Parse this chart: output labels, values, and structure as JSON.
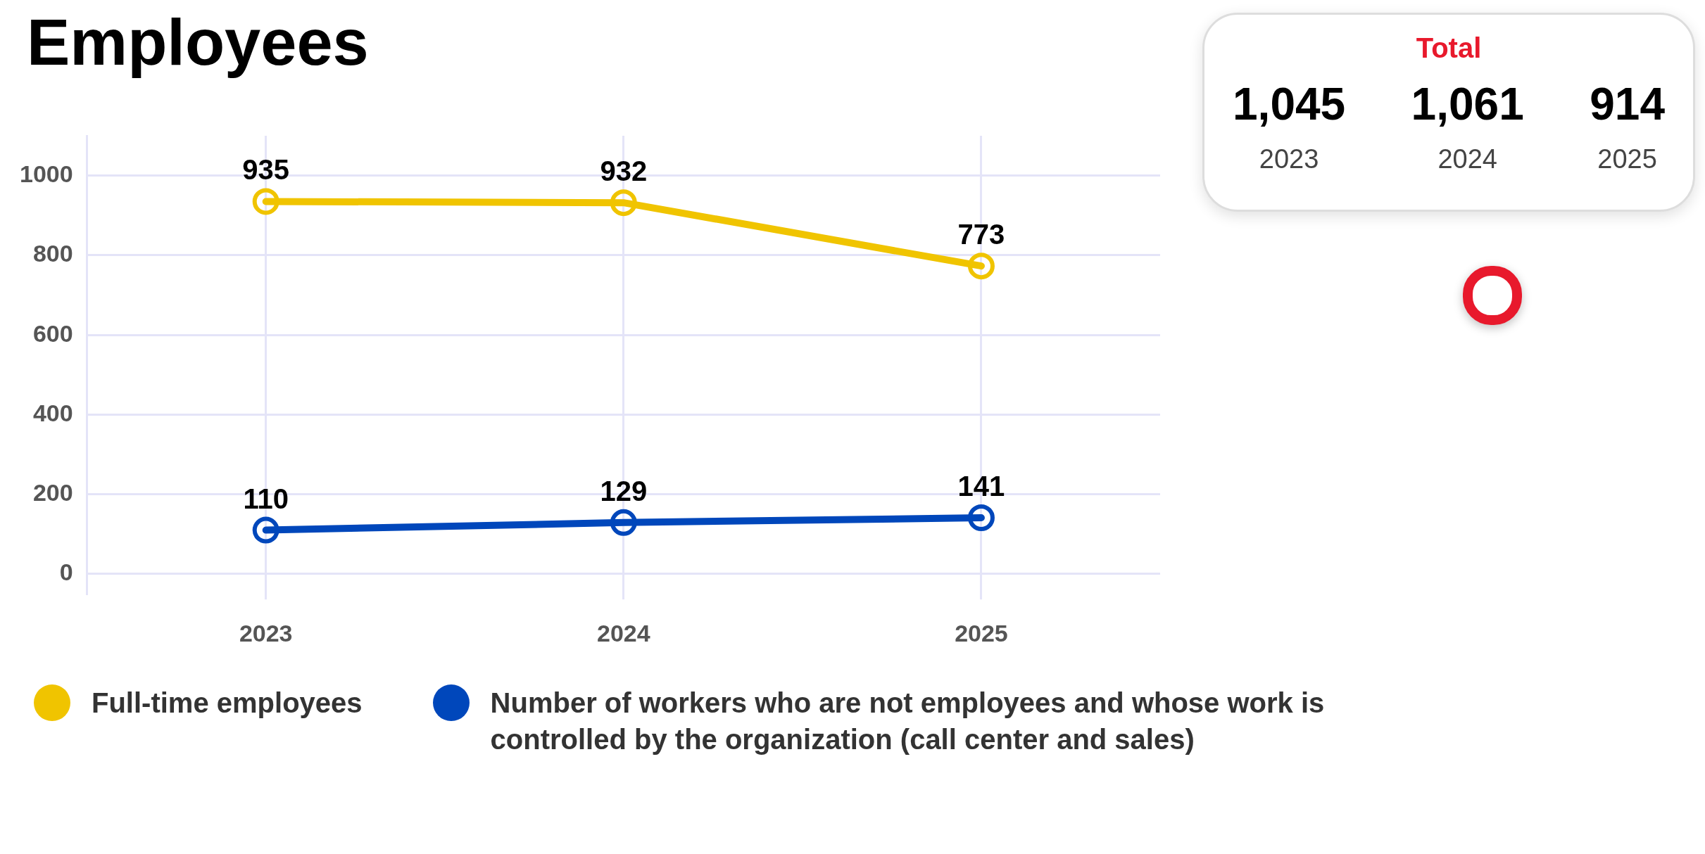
{
  "chart_data": {
    "type": "line",
    "title": "Employees",
    "categories": [
      "2023",
      "2024",
      "2025"
    ],
    "series": [
      {
        "name": "Full-time employees",
        "color": "#f0c400",
        "values": [
          935,
          932,
          773
        ]
      },
      {
        "name": "Number of workers who are not employees and whose work is controlled by the organization (call center and sales)",
        "color": "#0047bb",
        "values": [
          110,
          129,
          141
        ]
      }
    ],
    "ylim": [
      -50,
      1100
    ],
    "yticks": [
      0,
      200,
      400,
      600,
      800,
      1000
    ],
    "grid": true,
    "marker": "circle",
    "line_style": "solid",
    "data_labels": true,
    "legend": "bottom",
    "totals": [
      "1,045",
      "1,061",
      "914"
    ],
    "annotations": [
      "Total"
    ]
  }
}
